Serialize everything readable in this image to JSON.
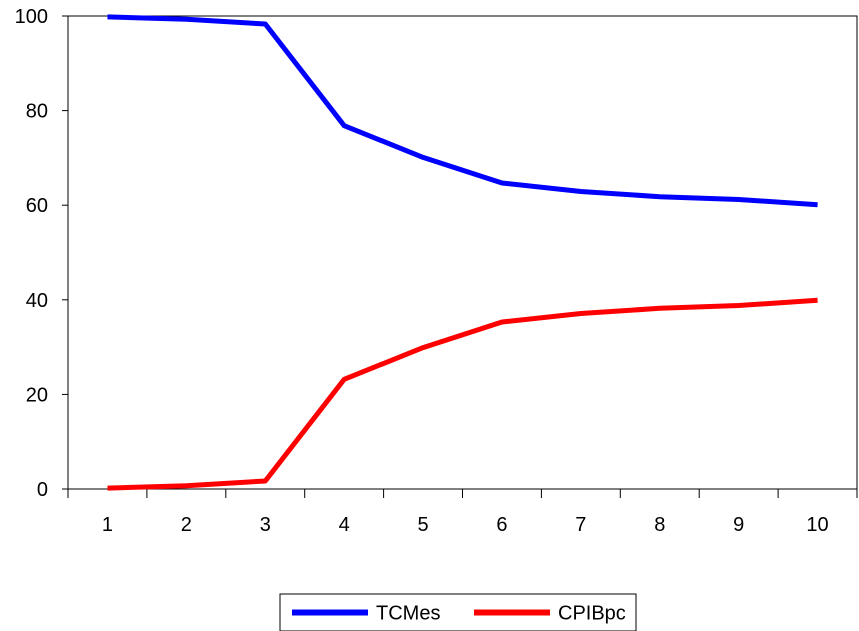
{
  "chart_data": {
    "type": "line",
    "x": [
      1,
      2,
      3,
      4,
      5,
      6,
      7,
      8,
      9,
      10
    ],
    "ylim": [
      0,
      100
    ],
    "yticks": [
      0,
      20,
      40,
      60,
      80,
      100
    ],
    "grid": false,
    "legend_position": "bottom-center",
    "series": [
      {
        "name": "TCMes",
        "color": "#0000ff",
        "values": [
          99.8,
          99.3,
          98.3,
          76.8,
          70.1,
          64.7,
          62.9,
          61.8,
          61.2,
          60.1
        ]
      },
      {
        "name": "CPIBpc",
        "color": "#ff0000",
        "values": [
          0.2,
          0.7,
          1.7,
          23.2,
          29.9,
          35.3,
          37.1,
          38.2,
          38.8,
          39.9
        ]
      }
    ]
  }
}
